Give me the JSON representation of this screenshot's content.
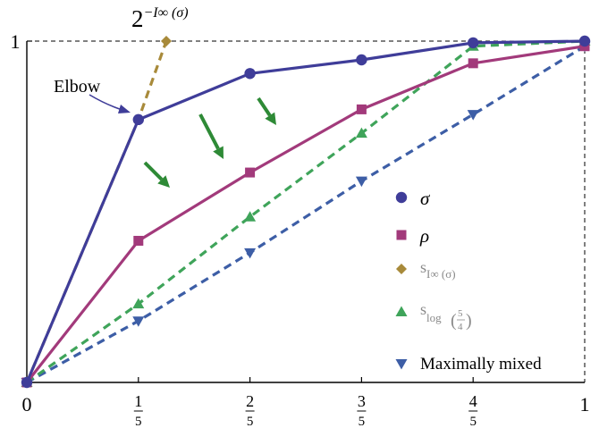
{
  "chart_data": {
    "type": "line",
    "x": [
      0,
      0.2,
      0.4,
      0.6,
      0.8,
      1
    ],
    "xlim": [
      0,
      1
    ],
    "ylim": [
      0,
      1
    ],
    "x_ticks": [
      {
        "value": 0,
        "num": "0",
        "den": ""
      },
      {
        "value": 0.2,
        "num": "1",
        "den": "5"
      },
      {
        "value": 0.4,
        "num": "2",
        "den": "5"
      },
      {
        "value": 0.6,
        "num": "3",
        "den": "5"
      },
      {
        "value": 0.8,
        "num": "4",
        "den": "5"
      },
      {
        "value": 1,
        "num": "1",
        "den": ""
      }
    ],
    "y_ticks": [
      {
        "value": 1,
        "label": "1"
      }
    ],
    "series": [
      {
        "name": "σ",
        "color": "#3f3d99",
        "marker": "circle",
        "dashed": false,
        "points": [
          [
            0,
            0
          ],
          [
            0.2,
            0.77
          ],
          [
            0.4,
            0.905
          ],
          [
            0.6,
            0.945
          ],
          [
            0.8,
            0.995
          ],
          [
            1,
            1
          ]
        ]
      },
      {
        "name": "ρ",
        "color": "#a23a7b",
        "marker": "square",
        "dashed": false,
        "points": [
          [
            0,
            0
          ],
          [
            0.2,
            0.415
          ],
          [
            0.4,
            0.615
          ],
          [
            0.6,
            0.8
          ],
          [
            0.8,
            0.935
          ],
          [
            1,
            0.985
          ]
        ]
      },
      {
        "name_prefix": "s",
        "name_sub": "I∞ (σ)",
        "color": "#a88a3a",
        "marker": "diamond",
        "dashed": true,
        "points": [
          [
            0,
            0
          ],
          [
            0.2,
            0.77
          ],
          [
            0.25,
            1
          ]
        ]
      },
      {
        "name_prefix": "s",
        "name_sub": "log",
        "frac_num": "5",
        "frac_den": "4",
        "color": "#3fa45a",
        "marker": "triangle-up",
        "dashed": true,
        "points": [
          [
            0,
            0
          ],
          [
            0.2,
            0.23
          ],
          [
            0.4,
            0.485
          ],
          [
            0.6,
            0.73
          ],
          [
            0.8,
            0.985
          ],
          [
            1,
            1
          ]
        ]
      },
      {
        "name": "Maximally mixed",
        "color": "#3d5ea6",
        "marker": "triangle-down",
        "dashed": true,
        "points": [
          [
            0,
            0
          ],
          [
            0.2,
            0.18
          ],
          [
            0.4,
            0.38
          ],
          [
            0.6,
            0.59
          ],
          [
            0.8,
            0.785
          ],
          [
            1,
            0.985
          ]
        ]
      }
    ],
    "annotations": {
      "top_label_base": "2",
      "top_label_exp": "−I∞ (σ)",
      "elbow_label": "Elbow"
    },
    "arrows_color": "#2e8a36",
    "grid": false,
    "legend_position": "right"
  }
}
